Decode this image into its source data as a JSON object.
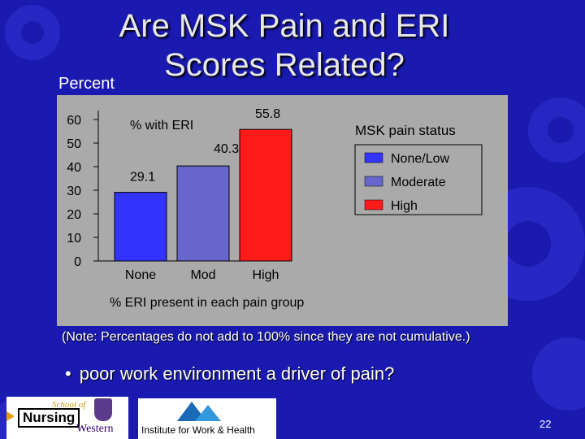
{
  "slide": {
    "title": "Are MSK Pain and ERI Scores Related?",
    "note": "(Note: Percentages do not add to 100% since they are not cumulative.)",
    "bullet": "poor work environment a driver of pain?",
    "page_number": "22"
  },
  "logos": {
    "school_of": "School of",
    "nursing": "Nursing",
    "western": "Western",
    "iwh": "Institute for Work & Health"
  },
  "colors": {
    "background": "#1a1ab0",
    "panel": "#aaaaaa",
    "none_low": "#3333ff",
    "moderate": "#6666cc",
    "high": "#ff1a1a"
  },
  "chart_data": {
    "type": "bar",
    "ylabel": "Percent",
    "series_label": "% with ERI",
    "xlabel": "% ERI present in each pain group",
    "categories": [
      "None",
      "Mod",
      "High"
    ],
    "values": [
      29.1,
      40.3,
      55.8
    ],
    "value_labels": [
      "29.1",
      "40.3",
      "55.8"
    ],
    "ylim": [
      0,
      60
    ],
    "yticks": [
      0,
      10,
      20,
      30,
      40,
      50,
      60
    ],
    "legend_title": "MSK pain status",
    "legend": [
      "None/Low",
      "Moderate",
      "High"
    ],
    "legend_position": "top-right",
    "grid": false
  }
}
